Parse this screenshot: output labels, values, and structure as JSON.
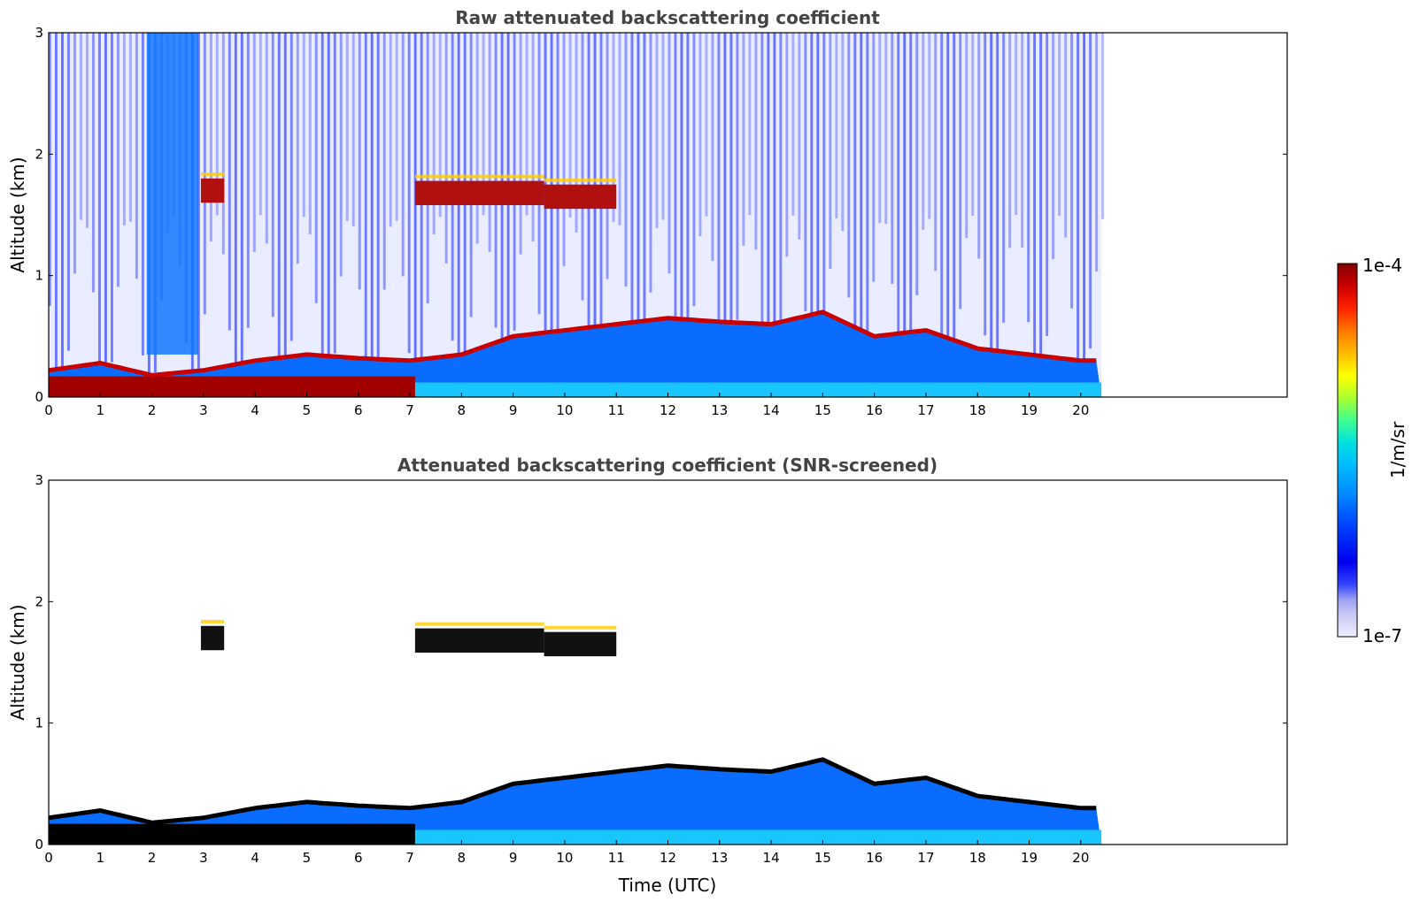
{
  "chart_data": [
    {
      "type": "heatmap",
      "title": "Raw attenuated backscattering coefficient",
      "xlabel": "",
      "ylabel": "Altitude (km)",
      "xlim": [
        0,
        24
      ],
      "ylim": [
        0,
        3
      ],
      "xticks": [
        "0",
        "1",
        "2",
        "3",
        "4",
        "5",
        "6",
        "7",
        "8",
        "9",
        "10",
        "11",
        "12",
        "13",
        "14",
        "15",
        "16",
        "17",
        "18",
        "19",
        "20"
      ],
      "yticks": [
        "0",
        "1",
        "2",
        "3"
      ],
      "data_end_hour": 20.4,
      "boundary_layer_top_km": [
        {
          "t": 0,
          "z": 0.22
        },
        {
          "t": 1,
          "z": 0.28
        },
        {
          "t": 2,
          "z": 0.18
        },
        {
          "t": 3,
          "z": 0.22
        },
        {
          "t": 4,
          "z": 0.3
        },
        {
          "t": 5,
          "z": 0.35
        },
        {
          "t": 6,
          "z": 0.32
        },
        {
          "t": 7,
          "z": 0.3
        },
        {
          "t": 8,
          "z": 0.35
        },
        {
          "t": 9,
          "z": 0.5
        },
        {
          "t": 10,
          "z": 0.55
        },
        {
          "t": 11,
          "z": 0.6
        },
        {
          "t": 12,
          "z": 0.65
        },
        {
          "t": 13,
          "z": 0.62
        },
        {
          "t": 14,
          "z": 0.6
        },
        {
          "t": 15,
          "z": 0.7
        },
        {
          "t": 16,
          "z": 0.5
        },
        {
          "t": 17,
          "z": 0.55
        },
        {
          "t": 18,
          "z": 0.4
        },
        {
          "t": 19,
          "z": 0.35
        },
        {
          "t": 20,
          "z": 0.3
        }
      ],
      "cloud_layers": [
        {
          "t0": 2.95,
          "t1": 3.4,
          "z": 1.7
        },
        {
          "t0": 7.1,
          "t1": 9.6,
          "z": 1.68
        },
        {
          "t0": 9.6,
          "t1": 11.0,
          "z": 1.65
        }
      ]
    },
    {
      "type": "heatmap",
      "title": "Attenuated backscattering coefficient (SNR-screened)",
      "xlabel": "Time (UTC)",
      "ylabel": "Altitude (km)",
      "xlim": [
        0,
        24
      ],
      "ylim": [
        0,
        3
      ],
      "xticks": [
        "0",
        "1",
        "2",
        "3",
        "4",
        "5",
        "6",
        "7",
        "8",
        "9",
        "10",
        "11",
        "12",
        "13",
        "14",
        "15",
        "16",
        "17",
        "18",
        "19",
        "20"
      ],
      "yticks": [
        "0",
        "1",
        "2",
        "3"
      ],
      "data_end_hour": 20.4,
      "boundary_layer_top_km": [
        {
          "t": 0,
          "z": 0.22
        },
        {
          "t": 1,
          "z": 0.28
        },
        {
          "t": 2,
          "z": 0.18
        },
        {
          "t": 3,
          "z": 0.22
        },
        {
          "t": 4,
          "z": 0.3
        },
        {
          "t": 5,
          "z": 0.35
        },
        {
          "t": 6,
          "z": 0.32
        },
        {
          "t": 7,
          "z": 0.3
        },
        {
          "t": 8,
          "z": 0.35
        },
        {
          "t": 9,
          "z": 0.5
        },
        {
          "t": 10,
          "z": 0.55
        },
        {
          "t": 11,
          "z": 0.6
        },
        {
          "t": 12,
          "z": 0.65
        },
        {
          "t": 13,
          "z": 0.62
        },
        {
          "t": 14,
          "z": 0.6
        },
        {
          "t": 15,
          "z": 0.7
        },
        {
          "t": 16,
          "z": 0.5
        },
        {
          "t": 17,
          "z": 0.55
        },
        {
          "t": 18,
          "z": 0.4
        },
        {
          "t": 19,
          "z": 0.35
        },
        {
          "t": 20,
          "z": 0.3
        }
      ],
      "cloud_layers": [
        {
          "t0": 2.95,
          "t1": 3.4,
          "z": 1.7
        },
        {
          "t0": 7.1,
          "t1": 9.6,
          "z": 1.68
        },
        {
          "t0": 9.6,
          "t1": 11.0,
          "z": 1.65
        }
      ]
    }
  ],
  "colorbar": {
    "top_label": "1e-4",
    "bottom_label": "1e-7",
    "unit_label": "1/m/sr",
    "colors": [
      "#eeeeff",
      "#c8c8f5",
      "#9aa0f0",
      "#3344ff",
      "#0000ee",
      "#0044ff",
      "#0088ff",
      "#00bbff",
      "#00e0e0",
      "#40ff90",
      "#aaff30",
      "#ffff00",
      "#ffbb00",
      "#ff7700",
      "#ff2200",
      "#cc0000",
      "#800000"
    ]
  }
}
